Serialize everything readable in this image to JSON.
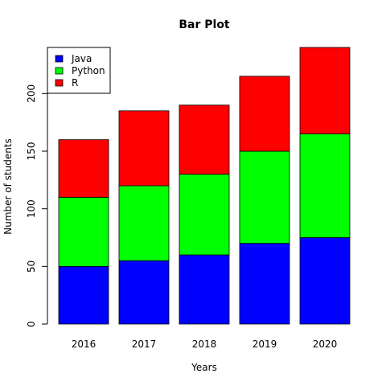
{
  "chart_data": {
    "type": "bar",
    "stacked": true,
    "title": "Bar Plot",
    "xlabel": "Years",
    "ylabel": "Number of students",
    "categories": [
      "2016",
      "2017",
      "2018",
      "2019",
      "2020"
    ],
    "series": [
      {
        "name": "Java",
        "color": "#0000ff",
        "values": [
          50,
          55,
          60,
          70,
          75
        ]
      },
      {
        "name": "Python",
        "color": "#00ff00",
        "values": [
          60,
          65,
          70,
          80,
          90
        ]
      },
      {
        "name": "R",
        "color": "#ff0000",
        "values": [
          50,
          65,
          60,
          65,
          75
        ]
      }
    ],
    "ylim": [
      0,
      240
    ],
    "yticks": [
      "0",
      "50",
      "100",
      "150",
      "200"
    ],
    "grid": false,
    "legend_position": "top-left"
  }
}
